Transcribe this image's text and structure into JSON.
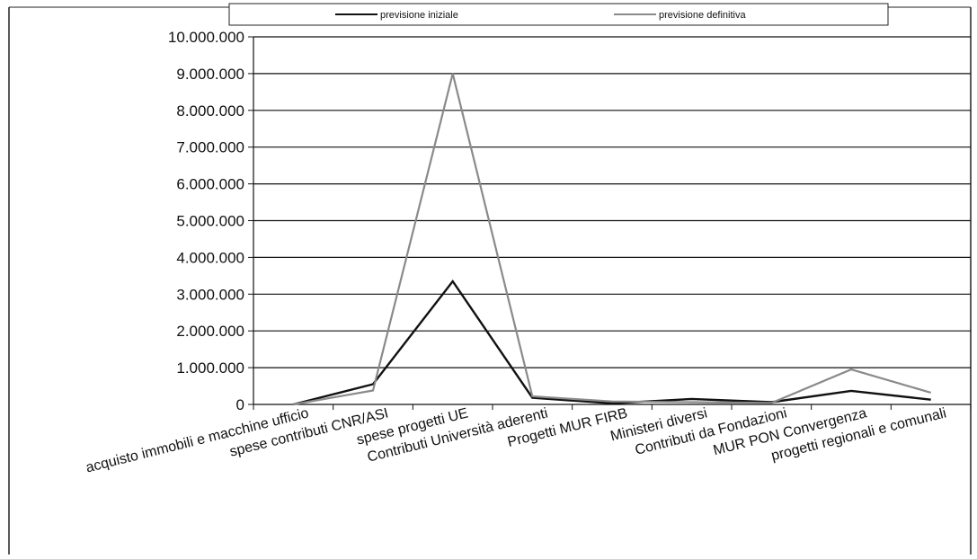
{
  "chart_data": {
    "type": "line",
    "categories": [
      "acquisto immobili e macchine ufficio",
      "spese contributi CNR/ASI",
      "spese progetti UE",
      "Contributi Università aderenti",
      "Progetti MUR FIRB",
      "Ministeri diversi",
      "Contributi da Fondazioni",
      "MUR PON Convergenza",
      "progetti regionali e comunali"
    ],
    "series": [
      {
        "name": "previsione iniziale",
        "color": "#111111",
        "values": [
          0,
          550000,
          3350000,
          180000,
          30000,
          150000,
          60000,
          370000,
          130000
        ]
      },
      {
        "name": "previsione definitiva",
        "color": "#8a8a8a",
        "values": [
          0,
          380000,
          9000000,
          220000,
          80000,
          60000,
          40000,
          950000,
          320000
        ]
      }
    ],
    "ylim": [
      0,
      10000000
    ],
    "y_ticks": [
      0,
      1000000,
      2000000,
      3000000,
      4000000,
      5000000,
      6000000,
      7000000,
      8000000,
      9000000,
      10000000
    ],
    "y_tick_labels": [
      "0",
      "1.000.000",
      "2.000.000",
      "3.000.000",
      "4.000.000",
      "5.000.000",
      "6.000.000",
      "7.000.000",
      "8.000.000",
      "9.000.000",
      "10.000.000"
    ],
    "grid": true,
    "legend_position": "top"
  }
}
